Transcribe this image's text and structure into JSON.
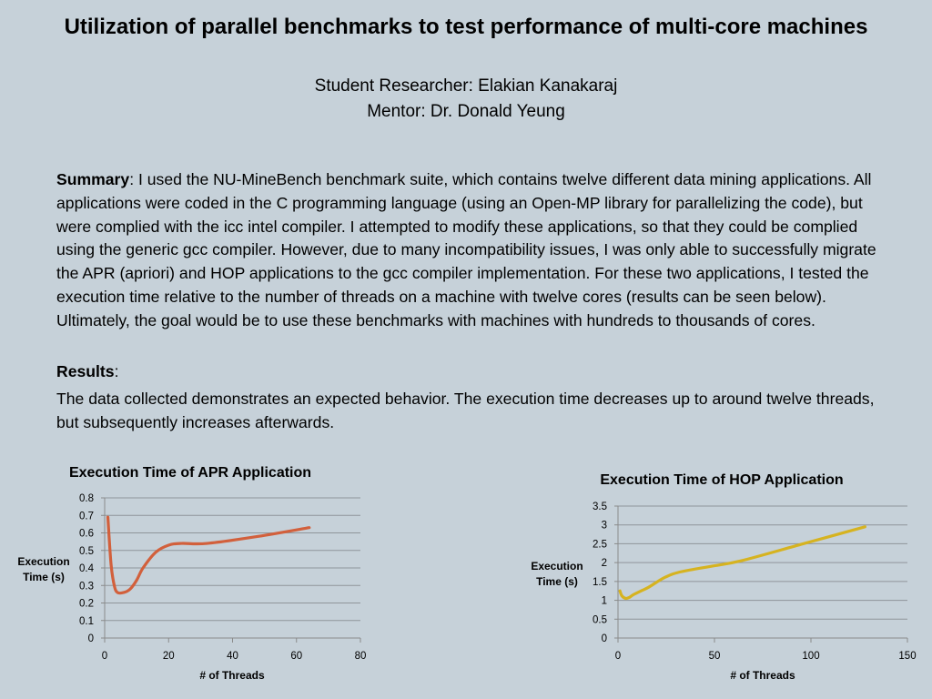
{
  "header": {
    "title": "Utilization of parallel benchmarks to test performance of multi-core machines",
    "researcher": "Student Researcher: Elakian Kanakaraj",
    "mentor": "Mentor: Dr. Donald Yeung"
  },
  "summary": {
    "label": "Summary",
    "text": ": I used the NU-MineBench benchmark suite, which contains twelve different data mining applications. All applications were coded in the C programming language (using an Open-MP library for parallelizing the code), but were complied with the icc intel compiler. I attempted to modify these applications, so that they could be complied using the generic gcc compiler. However, due to many incompatibility issues, I was only able to successfully migrate the APR (apriori)  and HOP applications to the gcc compiler implementation. For these two applications, I tested the execution time relative to the number of threads on a machine with twelve cores (results can be seen below). Ultimately, the goal would be to use these benchmarks with machines with hundreds to thousands of cores."
  },
  "results": {
    "label": "Results",
    "suffix": ":",
    "text": "The data collected demonstrates an expected behavior. The execution time decreases up to around twelve threads, but subsequently increases afterwards."
  },
  "chart_data": [
    {
      "type": "line",
      "title": "Execution Time of APR Application",
      "xlabel": "# of Threads",
      "ylabel_lines": [
        "Execution",
        "Time (s)"
      ],
      "xlim": [
        0,
        80
      ],
      "ylim": [
        0,
        0.8
      ],
      "xticks": [
        "0",
        "20",
        "40",
        "60",
        "80"
      ],
      "yticks": [
        "0",
        "0.1",
        "0.2",
        "0.3",
        "0.4",
        "0.5",
        "0.6",
        "0.7",
        "0.8"
      ],
      "grid": true,
      "color": "#d2603c",
      "series": [
        {
          "x": [
            1,
            2,
            3,
            4,
            6,
            8,
            10,
            12,
            16,
            20,
            24,
            32,
            48,
            64
          ],
          "y": [
            0.69,
            0.42,
            0.3,
            0.26,
            0.26,
            0.28,
            0.33,
            0.4,
            0.49,
            0.53,
            0.54,
            0.54,
            0.58,
            0.63
          ]
        }
      ]
    },
    {
      "type": "line",
      "title": "Execution Time of HOP Application",
      "xlabel": "# of Threads",
      "ylabel_lines": [
        "Execution",
        "Time (s)"
      ],
      "xlim": [
        0,
        150
      ],
      "ylim": [
        0,
        3.5
      ],
      "xticks": [
        "0",
        "50",
        "100",
        "150"
      ],
      "yticks": [
        "0",
        "0.5",
        "1",
        "1.5",
        "2",
        "2.5",
        "3",
        "3.5"
      ],
      "grid": true,
      "color": "#d6b320",
      "series": [
        {
          "x": [
            1,
            2,
            4,
            6,
            8,
            12,
            16,
            24,
            32,
            48,
            64,
            96,
            128
          ],
          "y": [
            1.25,
            1.12,
            1.05,
            1.08,
            1.15,
            1.25,
            1.35,
            1.6,
            1.75,
            1.9,
            2.05,
            2.5,
            2.95
          ]
        }
      ]
    }
  ]
}
